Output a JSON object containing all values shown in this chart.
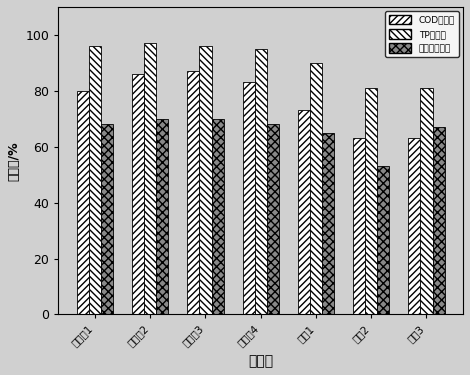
{
  "categories": [
    "实施奡1",
    "实施奡2",
    "实施奡3",
    "实施奡4",
    "对比1",
    "对比2",
    "对比3"
  ],
  "cod_values": [
    80,
    86,
    87,
    83,
    73,
    63,
    63
  ],
  "tp_values": [
    96,
    97,
    96,
    95,
    90,
    81,
    81
  ],
  "cr_values": [
    68,
    70,
    70,
    68,
    65,
    53,
    67
  ],
  "xlabel": "实验组",
  "ylabel": "去除率/%",
  "ylim": [
    0,
    110
  ],
  "yticks": [
    0,
    20,
    40,
    60,
    80,
    100
  ],
  "legend_labels": [
    "COD去除率",
    "TP去除率",
    "铬离子去除率"
  ],
  "bar_width": 0.22,
  "bg_color": "#d0d0d0"
}
